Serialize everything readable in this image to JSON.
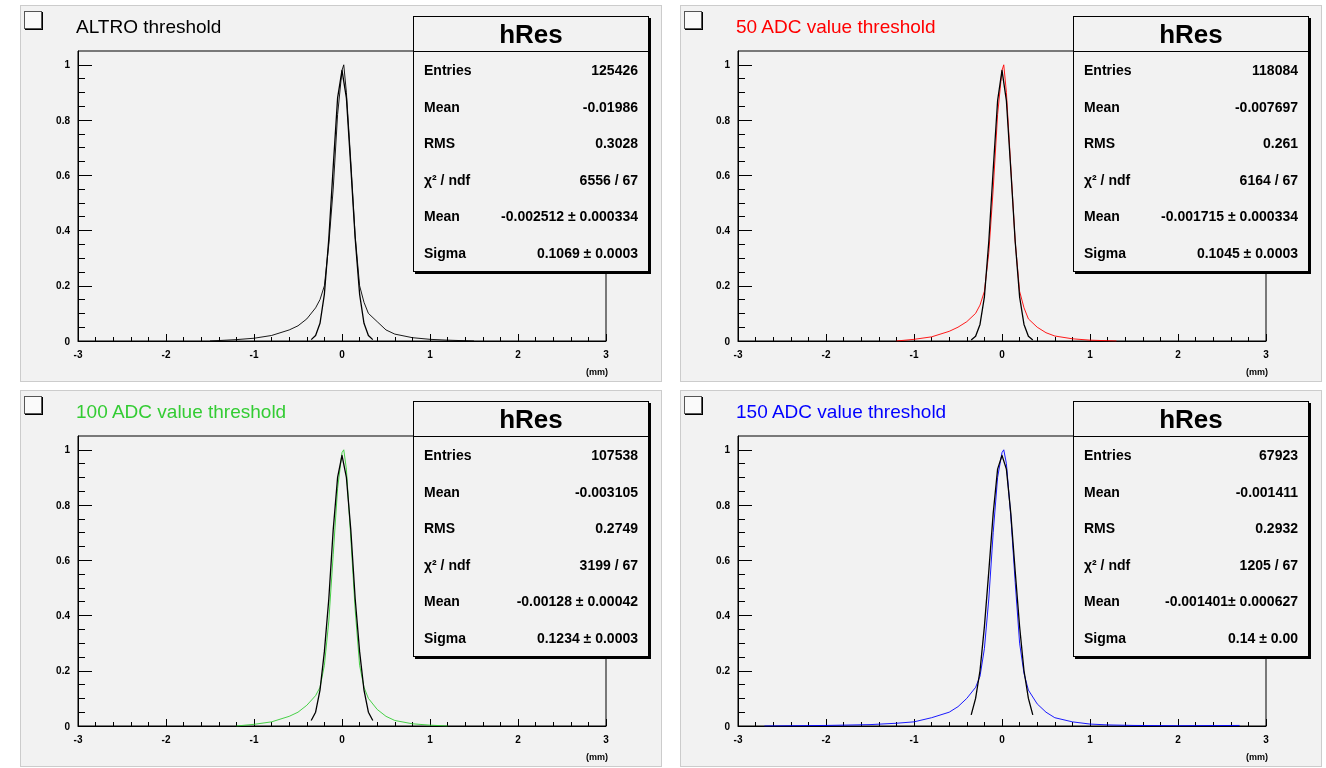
{
  "chart_data": [
    {
      "type": "line",
      "title": "ALTRO threshold",
      "xlabel": "(mm)",
      "xlim": [
        -3,
        3
      ],
      "xticks": [
        -3,
        -2,
        -1,
        0,
        1,
        2,
        3
      ],
      "ylim": [
        0,
        1.05
      ],
      "yticks": [
        0,
        0.2,
        0.4,
        0.6,
        0.8,
        1
      ],
      "annotations": [
        "hRes",
        "Entries",
        "125426",
        "Mean",
        "-0.01986",
        "RMS",
        "0.3028",
        "χ² / ndf",
        "6556 / 67",
        "Mean",
        "-0.002512 ± 0.000334",
        "Sigma",
        "0.1069 ± 0.0003"
      ],
      "series": [
        {
          "color": "#000000",
          "x": [
            -1.5,
            -1.2,
            -1.0,
            -0.8,
            -0.6,
            -0.5,
            -0.4,
            -0.3,
            -0.25,
            -0.2,
            -0.15,
            -0.1,
            -0.05,
            0,
            0.02,
            0.05,
            0.1,
            0.15,
            0.2,
            0.25,
            0.3,
            0.4,
            0.5,
            0.6,
            0.8,
            1.0,
            1.2,
            1.5
          ],
          "values": [
            0.0,
            0.005,
            0.01,
            0.02,
            0.04,
            0.055,
            0.08,
            0.12,
            0.15,
            0.2,
            0.35,
            0.55,
            0.82,
            0.98,
            1.0,
            0.9,
            0.65,
            0.38,
            0.2,
            0.14,
            0.1,
            0.07,
            0.04,
            0.025,
            0.012,
            0.006,
            0.003,
            0.0
          ]
        },
        {
          "type": "line",
          "color": "#000000",
          "x": [
            -0.35,
            -0.3,
            -0.25,
            -0.2,
            -0.15,
            -0.1,
            -0.05,
            0,
            0.05,
            0.1,
            0.15,
            0.2,
            0.25,
            0.3,
            0.35
          ],
          "values": [
            0.005,
            0.02,
            0.064,
            0.17,
            0.37,
            0.63,
            0.88,
            0.98,
            0.88,
            0.63,
            0.37,
            0.17,
            0.064,
            0.02,
            0.005
          ]
        }
      ]
    },
    {
      "type": "line",
      "title": "50 ADC value threshold",
      "xlabel": "(mm)",
      "xlim": [
        -3,
        3
      ],
      "xticks": [
        -3,
        -2,
        -1,
        0,
        1,
        2,
        3
      ],
      "ylim": [
        0,
        1.05
      ],
      "yticks": [
        0,
        0.2,
        0.4,
        0.6,
        0.8,
        1
      ],
      "annotations": [
        "hRes",
        "Entries",
        "118084",
        "Mean",
        "-0.007697",
        "RMS",
        "0.261",
        "χ² / ndf",
        "6164 / 67",
        "Mean",
        "-0.001715 ± 0.000334",
        "Sigma",
        "0.1045 ± 0.0003"
      ],
      "series": [
        {
          "color": "#ff0000",
          "x": [
            -1.2,
            -1.0,
            -0.8,
            -0.6,
            -0.5,
            -0.4,
            -0.3,
            -0.25,
            -0.2,
            -0.15,
            -0.1,
            -0.05,
            0,
            0.02,
            0.05,
            0.1,
            0.15,
            0.2,
            0.25,
            0.3,
            0.4,
            0.5,
            0.6,
            0.8,
            1.0,
            1.3
          ],
          "values": [
            0.0,
            0.006,
            0.015,
            0.035,
            0.05,
            0.07,
            0.1,
            0.13,
            0.18,
            0.32,
            0.55,
            0.82,
            0.98,
            1.0,
            0.9,
            0.63,
            0.36,
            0.18,
            0.12,
            0.08,
            0.05,
            0.03,
            0.018,
            0.008,
            0.003,
            0.0
          ]
        },
        {
          "type": "line",
          "color": "#000000",
          "x": [
            -0.35,
            -0.3,
            -0.25,
            -0.2,
            -0.15,
            -0.1,
            -0.05,
            0,
            0.05,
            0.1,
            0.15,
            0.2,
            0.25,
            0.3,
            0.35
          ],
          "values": [
            0.004,
            0.017,
            0.06,
            0.16,
            0.36,
            0.62,
            0.87,
            0.98,
            0.87,
            0.62,
            0.36,
            0.16,
            0.06,
            0.017,
            0.004
          ]
        }
      ]
    },
    {
      "type": "line",
      "title": "100 ADC value threshold",
      "xlabel": "(mm)",
      "xlim": [
        -3,
        3
      ],
      "xticks": [
        -3,
        -2,
        -1,
        0,
        1,
        2,
        3
      ],
      "ylim": [
        0,
        1.05
      ],
      "yticks": [
        0,
        0.2,
        0.4,
        0.6,
        0.8,
        1
      ],
      "annotations": [
        "hRes",
        "Entries",
        "107538",
        "Mean",
        "-0.003105",
        "RMS",
        "0.2749",
        "χ² / ndf",
        "3199 / 67",
        "Mean",
        "-0.00128 ± 0.00042",
        "Sigma",
        "0.1234 ± 0.0003"
      ],
      "series": [
        {
          "color": "#33cc33",
          "x": [
            -1.2,
            -1.0,
            -0.8,
            -0.6,
            -0.5,
            -0.4,
            -0.3,
            -0.25,
            -0.2,
            -0.15,
            -0.1,
            -0.05,
            0,
            0.02,
            0.05,
            0.1,
            0.15,
            0.2,
            0.25,
            0.3,
            0.4,
            0.5,
            0.6,
            0.8,
            1.0,
            1.2
          ],
          "values": [
            0.0,
            0.006,
            0.015,
            0.035,
            0.05,
            0.075,
            0.11,
            0.14,
            0.22,
            0.38,
            0.62,
            0.86,
            0.99,
            1.0,
            0.93,
            0.68,
            0.42,
            0.22,
            0.14,
            0.1,
            0.06,
            0.035,
            0.02,
            0.008,
            0.003,
            0.0
          ]
        },
        {
          "type": "line",
          "color": "#000000",
          "x": [
            -0.35,
            -0.3,
            -0.25,
            -0.2,
            -0.15,
            -0.1,
            -0.05,
            0,
            0.05,
            0.1,
            0.15,
            0.2,
            0.25,
            0.3,
            0.35
          ],
          "values": [
            0.02,
            0.05,
            0.13,
            0.27,
            0.46,
            0.71,
            0.9,
            0.98,
            0.9,
            0.71,
            0.46,
            0.27,
            0.13,
            0.05,
            0.02
          ]
        }
      ]
    },
    {
      "type": "line",
      "title": "150 ADC value threshold",
      "xlabel": "(mm)",
      "xlim": [
        -3,
        3
      ],
      "xticks": [
        -3,
        -2,
        -1,
        0,
        1,
        2,
        3
      ],
      "ylim": [
        0,
        1.05
      ],
      "yticks": [
        0,
        0.2,
        0.4,
        0.6,
        0.8,
        1
      ],
      "annotations": [
        "hRes",
        "Entries",
        "67923",
        "Mean",
        "-0.001411",
        "RMS",
        "0.2932",
        "χ² / ndf",
        "1205 / 67",
        "Mean",
        "-0.001401± 0.000627",
        "Sigma",
        "0.14 ± 0.00"
      ],
      "series": [
        {
          "color": "#0000ff",
          "x": [
            -2.7,
            -2.0,
            -1.5,
            -1.2,
            -1.0,
            -0.8,
            -0.6,
            -0.5,
            -0.4,
            -0.3,
            -0.25,
            -0.2,
            -0.15,
            -0.1,
            -0.05,
            0,
            0.02,
            0.05,
            0.1,
            0.15,
            0.2,
            0.25,
            0.3,
            0.4,
            0.5,
            0.6,
            0.8,
            1.0,
            1.2,
            1.5,
            2.0,
            2.7
          ],
          "values": [
            0.0,
            0.002,
            0.005,
            0.01,
            0.015,
            0.03,
            0.05,
            0.07,
            0.1,
            0.14,
            0.18,
            0.28,
            0.46,
            0.7,
            0.9,
            0.99,
            1.0,
            0.95,
            0.76,
            0.52,
            0.3,
            0.19,
            0.13,
            0.08,
            0.05,
            0.03,
            0.015,
            0.007,
            0.004,
            0.002,
            0.001,
            0.002
          ]
        },
        {
          "type": "line",
          "color": "#000000",
          "x": [
            -0.35,
            -0.3,
            -0.25,
            -0.2,
            -0.15,
            -0.1,
            -0.05,
            0,
            0.05,
            0.1,
            0.15,
            0.2,
            0.25,
            0.3,
            0.35
          ],
          "values": [
            0.04,
            0.1,
            0.2,
            0.36,
            0.56,
            0.77,
            0.93,
            0.98,
            0.93,
            0.77,
            0.56,
            0.36,
            0.2,
            0.1,
            0.04
          ]
        }
      ]
    }
  ]
}
